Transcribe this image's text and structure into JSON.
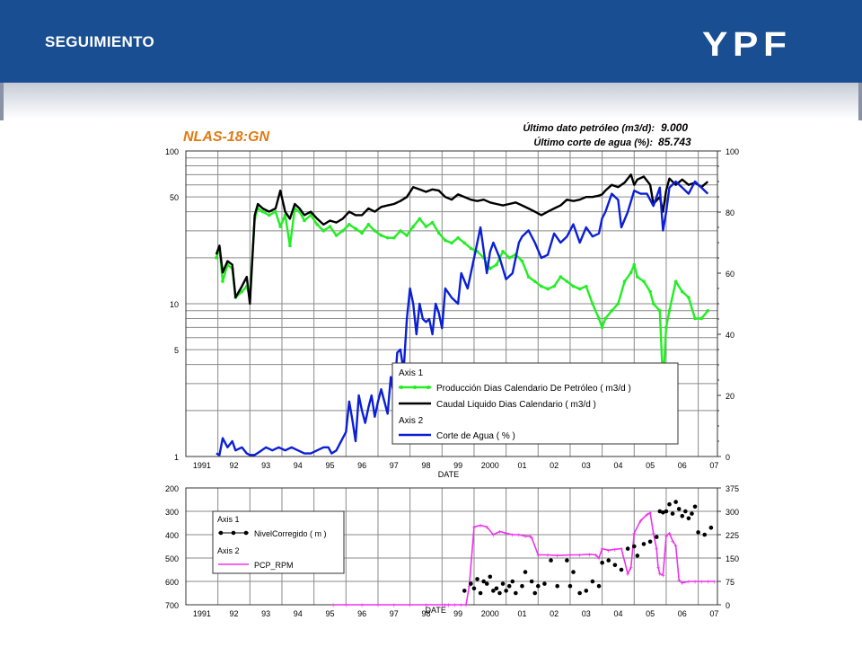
{
  "header": {
    "title": "SEGUIMIENTO",
    "logo_text": "YPF",
    "colors": {
      "banner": "#1a4e92",
      "logo_fill": "#ffffff"
    }
  },
  "well": {
    "name": "NLAS-18:GN",
    "last_oil_label": "Último dato petróleo (m3/d):",
    "last_oil_value": "9.000",
    "last_water_label": "Último corte de agua (%):",
    "last_water_value": "85.743"
  },
  "chart_data": [
    {
      "type": "line",
      "title": "NLAS-18:GN",
      "xlabel": "DATE",
      "x_ticks": [
        "1991",
        "92",
        "93",
        "94",
        "95",
        "96",
        "97",
        "98",
        "99",
        "2000",
        "01",
        "02",
        "03",
        "04",
        "05",
        "06",
        "07"
      ],
      "xlim": [
        1991.0,
        2007.6
      ],
      "y_left_scale": "log",
      "y_left_ticks": [
        "100",
        "50",
        "10",
        "5",
        "1"
      ],
      "y_left_lim": [
        1,
        100
      ],
      "y_right_ticks": [
        "100",
        "80",
        "60",
        "40",
        "20",
        "0"
      ],
      "y_right_lim": [
        0,
        100
      ],
      "grid": true,
      "legend_position": "bottom-right",
      "legend": {
        "axis1_label": "Axis 1",
        "axis2_label": "Axis 2",
        "items": [
          "Producción Dias Calendario De Petróleo ( m3/d )",
          "Caudal Liquido Dias Calendario ( m3/d )",
          "Corte de Agua ( % )"
        ]
      },
      "series": [
        {
          "name": "Producción Dias Calendario De Petróleo ( m3/d )",
          "axis": "left",
          "color": "#22ee22",
          "markers": true,
          "x": [
            1991.95,
            1992.05,
            1992.15,
            1992.3,
            1992.45,
            1992.55,
            1992.75,
            1992.9,
            1993.0,
            1993.15,
            1993.25,
            1993.4,
            1993.6,
            1993.8,
            1993.95,
            1994.1,
            1994.25,
            1994.4,
            1994.55,
            1994.7,
            1994.9,
            1995.1,
            1995.3,
            1995.5,
            1995.7,
            1995.9,
            1996.1,
            1996.3,
            1996.5,
            1996.7,
            1996.9,
            1997.1,
            1997.3,
            1997.5,
            1997.7,
            1997.9,
            1998.1,
            1998.3,
            1998.5,
            1998.7,
            1998.9,
            1999.1,
            1999.3,
            1999.5,
            1999.7,
            1999.9,
            2000.1,
            2000.3,
            2000.5,
            2000.7,
            2000.9,
            2001.1,
            2001.3,
            2001.5,
            2001.7,
            2001.9,
            2002.1,
            2002.3,
            2002.5,
            2002.7,
            2002.9,
            2003.1,
            2003.3,
            2003.5,
            2003.7,
            2003.9,
            2004.0,
            2004.1,
            2004.3,
            2004.5,
            2004.7,
            2004.9,
            2005.0,
            2005.1,
            2005.3,
            2005.5,
            2005.6,
            2005.8,
            2005.9,
            2006.0,
            2006.1,
            2006.3,
            2006.5,
            2006.7,
            2006.9,
            2007.1,
            2007.3
          ],
          "values": [
            20,
            23,
            14,
            18,
            17,
            11,
            12,
            13,
            11,
            36,
            42,
            40,
            38,
            40,
            32,
            38,
            24,
            42,
            40,
            35,
            38,
            33,
            30,
            32,
            28,
            30,
            33,
            31,
            29,
            33,
            30,
            28,
            27,
            27,
            30,
            28,
            32,
            36,
            32,
            34,
            29,
            26,
            25,
            27,
            25,
            23,
            22,
            20,
            17,
            18,
            22,
            20,
            21,
            19,
            15,
            14,
            13,
            12.5,
            13,
            15,
            14,
            13,
            12.5,
            13,
            10,
            8,
            7,
            8,
            9,
            10,
            14,
            16,
            18,
            15,
            14,
            12,
            10,
            9,
            3,
            7,
            9,
            14,
            12,
            11,
            8,
            8,
            9
          ]
        },
        {
          "name": "Caudal Liquido Dias Calendario ( m3/d )",
          "axis": "left",
          "color": "#000000",
          "markers": false,
          "x": [
            1991.95,
            1992.05,
            1992.15,
            1992.3,
            1992.45,
            1992.55,
            1992.75,
            1992.9,
            1993.0,
            1993.15,
            1993.25,
            1993.4,
            1993.6,
            1993.8,
            1993.95,
            1994.1,
            1994.25,
            1994.4,
            1994.55,
            1994.7,
            1994.9,
            1995.1,
            1995.3,
            1995.5,
            1995.7,
            1995.9,
            1996.1,
            1996.3,
            1996.5,
            1996.7,
            1996.9,
            1997.1,
            1997.3,
            1997.5,
            1997.7,
            1997.9,
            1998.1,
            1998.3,
            1998.5,
            1998.7,
            1998.9,
            1999.1,
            1999.3,
            1999.5,
            1999.7,
            1999.9,
            2000.1,
            2000.3,
            2000.5,
            2000.7,
            2000.9,
            2001.1,
            2001.3,
            2001.5,
            2001.7,
            2001.9,
            2002.1,
            2002.3,
            2002.5,
            2002.7,
            2002.9,
            2003.1,
            2003.3,
            2003.5,
            2003.7,
            2003.9,
            2004.0,
            2004.1,
            2004.3,
            2004.5,
            2004.7,
            2004.9,
            2005.0,
            2005.1,
            2005.3,
            2005.5,
            2005.6,
            2005.8,
            2005.9,
            2006.0,
            2006.1,
            2006.3,
            2006.5,
            2006.7,
            2006.9,
            2007.1,
            2007.3
          ],
          "values": [
            21,
            24,
            16,
            19,
            18,
            11,
            13,
            15,
            10,
            38,
            45,
            42,
            40,
            42,
            55,
            40,
            36,
            45,
            42,
            38,
            40,
            36,
            33,
            35,
            34,
            36,
            40,
            38,
            38,
            42,
            40,
            43,
            44,
            45,
            47,
            50,
            58,
            56,
            54,
            56,
            55,
            50,
            48,
            52,
            50,
            48,
            47,
            48,
            46,
            45,
            44,
            45,
            46,
            44,
            42,
            40,
            38,
            40,
            42,
            44,
            48,
            47,
            48,
            50,
            50,
            51,
            52,
            55,
            60,
            58,
            62,
            70,
            60,
            65,
            68,
            60,
            45,
            50,
            40,
            55,
            66,
            60,
            65,
            60,
            62,
            58,
            63
          ]
        },
        {
          "name": "Corte de Agua ( % )",
          "axis": "right",
          "color": "#0b1fd6",
          "markers": false,
          "x": [
            1991.95,
            1992.05,
            1992.15,
            1992.3,
            1992.45,
            1992.55,
            1992.75,
            1992.9,
            1993.0,
            1993.15,
            1993.3,
            1993.5,
            1993.7,
            1993.9,
            1994.1,
            1994.3,
            1994.5,
            1994.7,
            1994.9,
            1995.1,
            1995.3,
            1995.45,
            1995.55,
            1995.7,
            1995.9,
            1996.0,
            1996.1,
            1996.2,
            1996.3,
            1996.4,
            1996.5,
            1996.6,
            1996.7,
            1996.8,
            1996.9,
            1997.0,
            1997.1,
            1997.2,
            1997.3,
            1997.4,
            1997.5,
            1997.6,
            1997.7,
            1997.8,
            1997.9,
            1998.0,
            1998.1,
            1998.2,
            1998.3,
            1998.4,
            1998.5,
            1998.6,
            1998.7,
            1998.8,
            1998.9,
            1999.0,
            1999.1,
            1999.3,
            1999.5,
            1999.6,
            1999.8,
            2000.0,
            2000.2,
            2000.4,
            2000.5,
            2000.6,
            2000.8,
            2001.0,
            2001.2,
            2001.4,
            2001.5,
            2001.7,
            2001.9,
            2002.1,
            2002.3,
            2002.5,
            2002.7,
            2002.9,
            2003.1,
            2003.3,
            2003.5,
            2003.7,
            2003.9,
            2004.0,
            2004.1,
            2004.3,
            2004.5,
            2004.6,
            2004.8,
            2005.0,
            2005.2,
            2005.4,
            2005.6,
            2005.8,
            2005.9,
            2006.0,
            2006.1,
            2006.3,
            2006.5,
            2006.7,
            2006.9,
            2007.1,
            2007.3
          ],
          "values": [
            1,
            0.5,
            6,
            3,
            5,
            2,
            3,
            1,
            0.5,
            0.5,
            1.5,
            3,
            2,
            3,
            2,
            3,
            2,
            1,
            1,
            2,
            3,
            3,
            1,
            2,
            6,
            8,
            18,
            12,
            5,
            20,
            15,
            11,
            16,
            20,
            13,
            18,
            22,
            18,
            14,
            26,
            20,
            34,
            35,
            28,
            45,
            55,
            50,
            40,
            50,
            45,
            44,
            45,
            40,
            50,
            47,
            42,
            55,
            52,
            50,
            60,
            55,
            65,
            75,
            60,
            67,
            70,
            65,
            58,
            60,
            70,
            72,
            74,
            70,
            65,
            66,
            73,
            70,
            72,
            76,
            70,
            75,
            72,
            73,
            78,
            80,
            86,
            84,
            75,
            80,
            87,
            86,
            86,
            82,
            88,
            74,
            80,
            88,
            90,
            88,
            86,
            90,
            88,
            86
          ]
        }
      ]
    },
    {
      "type": "line",
      "xlabel": "DATE",
      "x_ticks": [
        "1991",
        "92",
        "93",
        "94",
        "95",
        "96",
        "97",
        "98",
        "99",
        "2000",
        "01",
        "02",
        "03",
        "04",
        "05",
        "06",
        "07"
      ],
      "xlim": [
        1991.0,
        2007.6
      ],
      "y_left_ticks": [
        "200",
        "300",
        "400",
        "500",
        "600",
        "700"
      ],
      "y_left_lim": [
        700,
        200
      ],
      "y_right_ticks": [
        "375",
        "300",
        "225",
        "150",
        "75",
        "0"
      ],
      "y_right_lim": [
        0,
        375
      ],
      "grid": true,
      "legend_position": "top-left",
      "legend": {
        "axis1_label": "Axis 1",
        "axis2_label": "Axis 2",
        "items": [
          "NivelCorregido ( m )",
          "PCP_RPM"
        ]
      },
      "series": [
        {
          "name": "NivelCorregido ( m )",
          "axis": "left",
          "color": "#000000",
          "style": "points",
          "x": [
            1999.7,
            1999.9,
            2000.0,
            2000.1,
            2000.2,
            2000.3,
            2000.4,
            2000.5,
            2000.6,
            2000.7,
            2000.8,
            2000.9,
            2001.0,
            2001.1,
            2001.2,
            2001.3,
            2001.5,
            2001.6,
            2001.8,
            2001.9,
            2002.0,
            2002.2,
            2002.4,
            2002.6,
            2002.9,
            2003.0,
            2003.1,
            2003.3,
            2003.5,
            2003.7,
            2003.9,
            2004.0,
            2004.2,
            2004.4,
            2004.6,
            2004.8,
            2005.0,
            2005.1,
            2005.3,
            2005.5,
            2005.7,
            2005.8,
            2005.9,
            2006.0,
            2006.1,
            2006.2,
            2006.3,
            2006.4,
            2006.5,
            2006.6,
            2006.7,
            2006.8,
            2006.9,
            2007.0,
            2007.2,
            2007.4
          ],
          "values": [
            640,
            610,
            630,
            590,
            650,
            600,
            610,
            580,
            640,
            630,
            650,
            610,
            640,
            620,
            600,
            650,
            620,
            560,
            600,
            650,
            620,
            610,
            510,
            620,
            510,
            620,
            560,
            650,
            640,
            600,
            620,
            520,
            510,
            530,
            550,
            460,
            450,
            490,
            440,
            430,
            410,
            300,
            305,
            300,
            270,
            310,
            260,
            290,
            320,
            300,
            330,
            310,
            280,
            390,
            400,
            370
          ]
        },
        {
          "name": "PCP_RPM",
          "axis": "right",
          "color": "#ee33ee",
          "style": "line-markers",
          "x": [
            1995.6,
            1996.0,
            1996.5,
            1997.0,
            1997.5,
            1998.0,
            1998.5,
            1999.0,
            1999.1,
            1999.2,
            1999.4,
            1999.6,
            1999.75,
            1999.85,
            2000.0,
            2000.2,
            2000.4,
            2000.6,
            2000.8,
            2001.0,
            2001.2,
            2001.4,
            2001.6,
            2001.75,
            2001.8,
            2002.0,
            2002.3,
            2002.6,
            2003.0,
            2003.3,
            2003.6,
            2003.8,
            2003.9,
            2004.0,
            2004.2,
            2004.4,
            2004.6,
            2004.8,
            2004.9,
            2005.0,
            2005.2,
            2005.4,
            2005.5,
            2005.6,
            2005.7,
            2005.75,
            2005.8,
            2005.9,
            2006.0,
            2006.1,
            2006.2,
            2006.3,
            2006.4,
            2006.5,
            2006.7,
            2006.9,
            2007.1,
            2007.3,
            2007.5
          ],
          "values": [
            0,
            0,
            0,
            0,
            0,
            0,
            0,
            0,
            0,
            0,
            0,
            0,
            0,
            60,
            250,
            255,
            250,
            225,
            235,
            230,
            225,
            225,
            220,
            220,
            215,
            160,
            160,
            158,
            160,
            160,
            162,
            160,
            150,
            180,
            175,
            178,
            180,
            100,
            120,
            230,
            270,
            290,
            295,
            230,
            180,
            120,
            100,
            95,
            220,
            230,
            205,
            190,
            80,
            70,
            75,
            75,
            75,
            75,
            75
          ]
        }
      ]
    }
  ]
}
